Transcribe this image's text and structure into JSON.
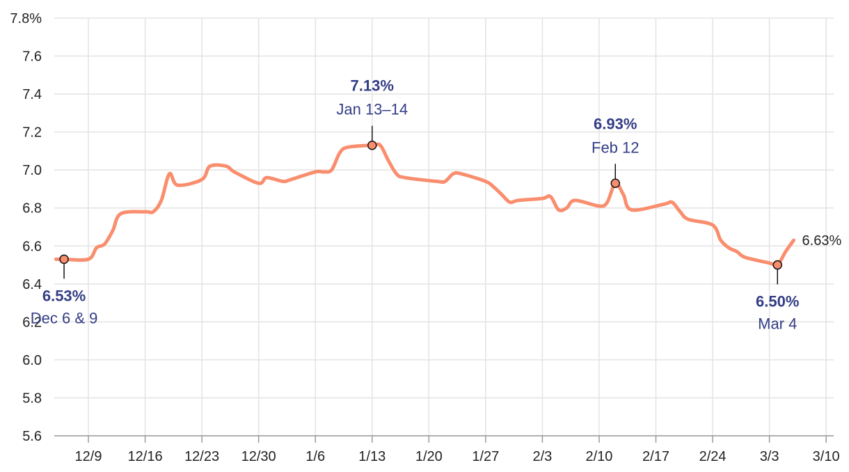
{
  "chart_data": {
    "type": "line",
    "title": "",
    "xlabel": "",
    "ylabel": "",
    "ylim": [
      5.6,
      7.8
    ],
    "y_ticks": [
      "5.6",
      "5.8",
      "6.0",
      "6.2",
      "6.4",
      "6.6",
      "6.8",
      "7.0",
      "7.2",
      "7.4",
      "7.6",
      "7.8%"
    ],
    "x_ticks": [
      "12/9",
      "12/16",
      "12/23",
      "12/30",
      "1/6",
      "1/13",
      "1/20",
      "1/27",
      "2/3",
      "2/10",
      "2/17",
      "2/24",
      "3/3",
      "3/10"
    ],
    "grid": true,
    "legend": "none",
    "colors": {
      "line": "#f98e6f",
      "annotation_text": "#333d85",
      "marker_fill": "#f98e6f",
      "marker_leader": "#111111"
    },
    "series": [
      {
        "values": [
          [
            "12/5",
            6.53
          ],
          [
            "12/6",
            6.53
          ],
          [
            "12/9",
            6.53
          ],
          [
            "12/10",
            6.59
          ],
          [
            "12/11",
            6.61
          ],
          [
            "12/12",
            6.68
          ],
          [
            "12/13",
            6.77
          ],
          [
            "12/16",
            6.78
          ],
          [
            "12/17",
            6.78
          ],
          [
            "12/18",
            6.84
          ],
          [
            "12/19",
            6.98
          ],
          [
            "12/20",
            6.92
          ],
          [
            "12/23",
            6.95
          ],
          [
            "12/24",
            7.02
          ],
          [
            "12/26",
            7.02
          ],
          [
            "12/27",
            6.99
          ],
          [
            "12/30",
            6.93
          ],
          [
            "12/31",
            6.96
          ],
          [
            "1/2",
            6.94
          ],
          [
            "1/3",
            6.95
          ],
          [
            "1/6",
            6.99
          ],
          [
            "1/7",
            6.99
          ],
          [
            "1/8",
            7.0
          ],
          [
            "1/9",
            7.09
          ],
          [
            "1/10",
            7.12
          ],
          [
            "1/13",
            7.13
          ],
          [
            "1/14",
            7.13
          ],
          [
            "1/15",
            7.05
          ],
          [
            "1/16",
            6.98
          ],
          [
            "1/17",
            6.96
          ],
          [
            "1/21",
            6.94
          ],
          [
            "1/22",
            6.94
          ],
          [
            "1/23",
            6.98
          ],
          [
            "1/24",
            6.98
          ],
          [
            "1/27",
            6.94
          ],
          [
            "1/28",
            6.91
          ],
          [
            "1/29",
            6.87
          ],
          [
            "1/30",
            6.83
          ],
          [
            "1/31",
            6.84
          ],
          [
            "2/3",
            6.85
          ],
          [
            "2/4",
            6.86
          ],
          [
            "2/5",
            6.79
          ],
          [
            "2/6",
            6.8
          ],
          [
            "2/7",
            6.84
          ],
          [
            "2/10",
            6.81
          ],
          [
            "2/11",
            6.83
          ],
          [
            "2/12",
            6.93
          ],
          [
            "2/13",
            6.87
          ],
          [
            "2/14",
            6.79
          ],
          [
            "2/18",
            6.82
          ],
          [
            "2/19",
            6.83
          ],
          [
            "2/20",
            6.78
          ],
          [
            "2/21",
            6.74
          ],
          [
            "2/24",
            6.71
          ],
          [
            "2/25",
            6.63
          ],
          [
            "2/26",
            6.59
          ],
          [
            "2/27",
            6.57
          ],
          [
            "2/28",
            6.54
          ],
          [
            "3/3",
            6.51
          ],
          [
            "3/4",
            6.5
          ],
          [
            "3/5",
            6.57
          ],
          [
            "3/6",
            6.63
          ]
        ]
      }
    ],
    "annotations": [
      {
        "date": "12/6",
        "y": 6.53,
        "value_label": "6.53%",
        "date_label": "Dec 6 & 9",
        "position": "below"
      },
      {
        "date": "1/13",
        "y": 7.13,
        "value_label": "7.13%",
        "date_label": "Jan 13–14",
        "position": "above"
      },
      {
        "date": "2/12",
        "y": 6.93,
        "value_label": "6.93%",
        "date_label": "Feb 12",
        "position": "above"
      },
      {
        "date": "3/4",
        "y": 6.5,
        "value_label": "6.50%",
        "date_label": "Mar 4",
        "position": "below"
      }
    ],
    "end_label": {
      "date": "3/6",
      "y": 6.63,
      "text": "6.63%"
    }
  }
}
